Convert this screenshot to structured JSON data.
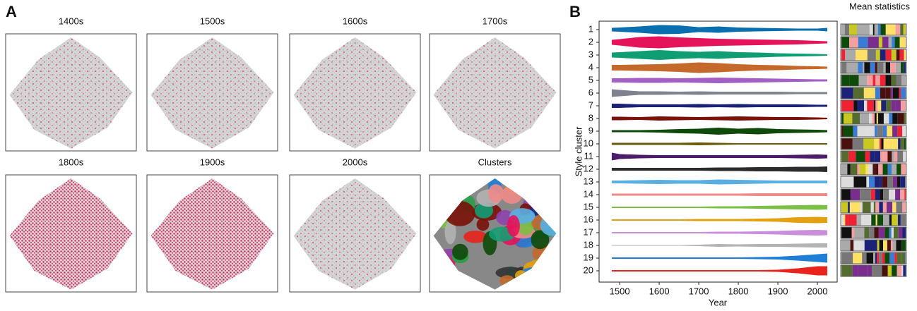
{
  "panel_labels": [
    "A",
    "B"
  ],
  "panel_a": {
    "titles": [
      "1400s",
      "1500s",
      "1600s",
      "1700s",
      "1800s",
      "1900s",
      "2000s",
      "Clusters"
    ]
  },
  "chart_data": {
    "type": "violin",
    "xlabel": "Year",
    "ylabel": "Style cluster",
    "side_title": "Mean statistics",
    "x": [
      1480,
      1500,
      1550,
      1600,
      1650,
      1700,
      1750,
      1800,
      1850,
      1900,
      1950,
      2000,
      2025
    ],
    "xlim": [
      1448,
      2050
    ],
    "xticks": [
      1500,
      1600,
      1700,
      1800,
      1900,
      2000
    ],
    "series": [
      {
        "name": "1",
        "color": "#0a6fae",
        "values": [
          4,
          5,
          8,
          12,
          11,
          6,
          8,
          5,
          4,
          3,
          2,
          2,
          4
        ]
      },
      {
        "name": "2",
        "color": "#e5135a",
        "values": [
          6,
          8,
          14,
          16,
          13,
          11,
          9,
          8,
          7,
          6,
          5,
          3,
          2
        ]
      },
      {
        "name": "3",
        "color": "#0f9e74",
        "values": [
          6,
          7,
          10,
          13,
          10,
          8,
          10,
          7,
          6,
          4,
          3,
          2,
          1
        ]
      },
      {
        "name": "4",
        "color": "#c4692a",
        "values": [
          7,
          7,
          8,
          9,
          11,
          14,
          12,
          9,
          7,
          6,
          4,
          3,
          2
        ]
      },
      {
        "name": "5",
        "color": "#a35fc3",
        "values": [
          5,
          5,
          6,
          6,
          5,
          6,
          7,
          6,
          5,
          4,
          3,
          2,
          2
        ]
      },
      {
        "name": "6",
        "color": "#80828f",
        "values": [
          10,
          8,
          4,
          4,
          3,
          4,
          3,
          3,
          3,
          3,
          2,
          2,
          2
        ]
      },
      {
        "name": "7",
        "color": "#1b2277",
        "values": [
          5,
          5,
          3,
          3,
          3,
          4,
          3,
          4,
          3,
          3,
          3,
          2,
          2
        ]
      },
      {
        "name": "8",
        "color": "#7a1208",
        "values": [
          4,
          4,
          3,
          5,
          4,
          3,
          4,
          5,
          4,
          3,
          3,
          2,
          1
        ]
      },
      {
        "name": "9",
        "color": "#0e4a0a",
        "values": [
          2,
          2,
          2,
          3,
          5,
          6,
          9,
          6,
          8,
          5,
          4,
          3,
          2
        ]
      },
      {
        "name": "10",
        "color": "#6b5a0a",
        "values": [
          2,
          2,
          2,
          2,
          2,
          3,
          2,
          1,
          1,
          1,
          1,
          1,
          1
        ]
      },
      {
        "name": "11",
        "color": "#4d1b6b",
        "values": [
          10,
          6,
          4,
          3,
          3,
          3,
          3,
          3,
          3,
          3,
          4,
          5,
          4
        ]
      },
      {
        "name": "12",
        "color": "#2b2b2b",
        "values": [
          3,
          3,
          3,
          3,
          3,
          3,
          4,
          4,
          5,
          5,
          6,
          6,
          7
        ]
      },
      {
        "name": "13",
        "color": "#5aafe2",
        "values": [
          3,
          3,
          4,
          5,
          4,
          4,
          6,
          5,
          4,
          3,
          3,
          3,
          3
        ]
      },
      {
        "name": "14",
        "color": "#ef8a8a",
        "values": [
          2,
          2,
          2,
          2,
          2,
          2,
          2,
          2,
          3,
          3,
          3,
          3,
          3
        ]
      },
      {
        "name": "15",
        "color": "#7cbf45",
        "values": [
          1,
          1,
          1,
          1,
          1,
          1,
          2,
          2,
          3,
          4,
          5,
          6,
          5
        ]
      },
      {
        "name": "16",
        "color": "#e3a010",
        "values": [
          1,
          1,
          1,
          1,
          1,
          2,
          2,
          2,
          3,
          4,
          7,
          8,
          7
        ]
      },
      {
        "name": "17",
        "color": "#c98fdc",
        "values": [
          1,
          1,
          1,
          1,
          1,
          1,
          2,
          2,
          3,
          4,
          6,
          7,
          6
        ]
      },
      {
        "name": "18",
        "color": "#b3b3b3",
        "values": [
          0,
          0,
          0,
          0,
          0,
          1,
          3,
          2,
          3,
          3,
          4,
          5,
          5
        ]
      },
      {
        "name": "19",
        "color": "#1f7fd6",
        "values": [
          1,
          1,
          1,
          1,
          1,
          1,
          1,
          1,
          2,
          3,
          6,
          10,
          12
        ]
      },
      {
        "name": "20",
        "color": "#e8221c",
        "values": [
          1,
          1,
          1,
          1,
          1,
          1,
          1,
          1,
          1,
          2,
          6,
          12,
          12
        ]
      }
    ]
  }
}
